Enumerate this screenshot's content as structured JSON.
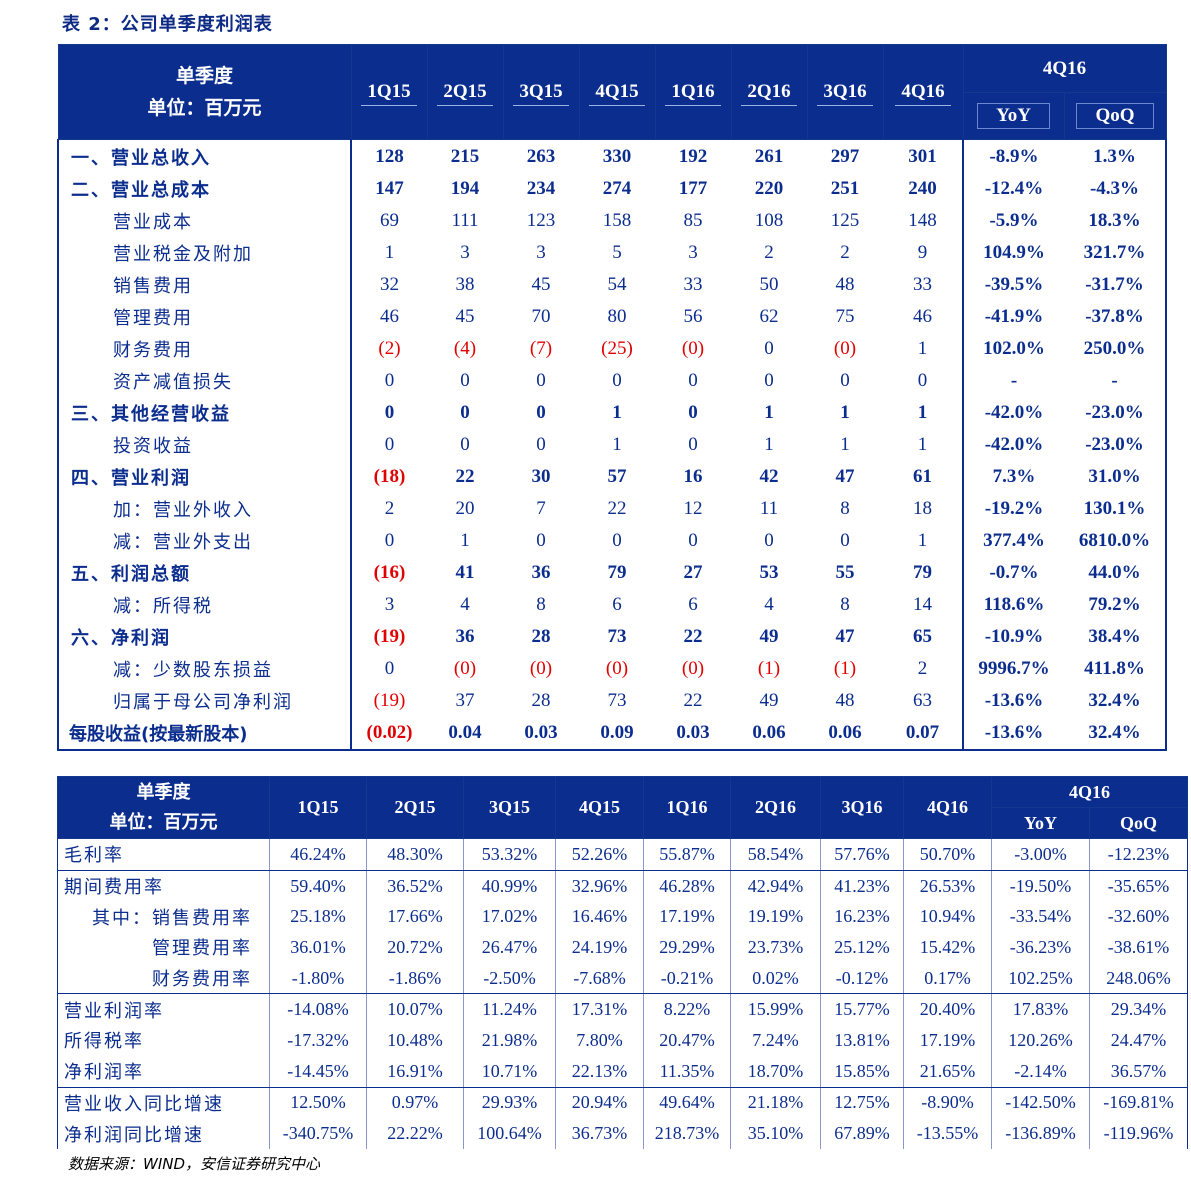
{
  "title": "表 2：公司单季度利润表",
  "source": "数据来源：WIND，安信证券研究中心",
  "income": {
    "corner": [
      "单季度",
      "单位：百万元"
    ],
    "quarters": [
      "1Q15",
      "2Q15",
      "3Q15",
      "4Q15",
      "1Q16",
      "2Q16",
      "3Q16",
      "4Q16"
    ],
    "group": "4Q16",
    "sub": [
      "YoY",
      "QoQ"
    ],
    "rows": [
      {
        "label": "一、营业总收入",
        "vals": [
          "128",
          "215",
          "263",
          "330",
          "192",
          "261",
          "297",
          "301"
        ],
        "yoy": "-8.9%",
        "qoq": "1.3%"
      },
      {
        "label": "二、营业总成本",
        "vals": [
          "147",
          "194",
          "234",
          "274",
          "177",
          "220",
          "251",
          "240"
        ],
        "yoy": "-12.4%",
        "qoq": "-4.3%"
      },
      {
        "label": "营业成本",
        "vals": [
          "69",
          "111",
          "123",
          "158",
          "85",
          "108",
          "125",
          "148"
        ],
        "yoy": "-5.9%",
        "qoq": "18.3%"
      },
      {
        "label": "营业税金及附加",
        "vals": [
          "1",
          "3",
          "3",
          "5",
          "3",
          "2",
          "2",
          "9"
        ],
        "yoy": "104.9%",
        "qoq": "321.7%"
      },
      {
        "label": "销售费用",
        "vals": [
          "32",
          "38",
          "45",
          "54",
          "33",
          "50",
          "48",
          "33"
        ],
        "yoy": "-39.5%",
        "qoq": "-31.7%"
      },
      {
        "label": "管理费用",
        "vals": [
          "46",
          "45",
          "70",
          "80",
          "56",
          "62",
          "75",
          "46"
        ],
        "yoy": "-41.9%",
        "qoq": "-37.8%"
      },
      {
        "label": "财务费用",
        "vals": [
          "(2)",
          "(4)",
          "(7)",
          "(25)",
          "(0)",
          "0",
          "(0)",
          "1"
        ],
        "yoy": "102.0%",
        "qoq": "250.0%"
      },
      {
        "label": "资产减值损失",
        "vals": [
          "0",
          "0",
          "0",
          "0",
          "0",
          "0",
          "0",
          "0"
        ],
        "yoy": "-",
        "qoq": "-"
      },
      {
        "label": "三、其他经营收益",
        "vals": [
          "0",
          "0",
          "0",
          "1",
          "0",
          "1",
          "1",
          "1"
        ],
        "yoy": "-42.0%",
        "qoq": "-23.0%"
      },
      {
        "label": "投资收益",
        "vals": [
          "0",
          "0",
          "0",
          "1",
          "0",
          "1",
          "1",
          "1"
        ],
        "yoy": "-42.0%",
        "qoq": "-23.0%"
      },
      {
        "label": "四、营业利润",
        "vals": [
          "(18)",
          "22",
          "30",
          "57",
          "16",
          "42",
          "47",
          "61"
        ],
        "yoy": "7.3%",
        "qoq": "31.0%"
      },
      {
        "label": "加：营业外收入",
        "vals": [
          "2",
          "20",
          "7",
          "22",
          "12",
          "11",
          "8",
          "18"
        ],
        "yoy": "-19.2%",
        "qoq": "130.1%"
      },
      {
        "label": "减：营业外支出",
        "vals": [
          "0",
          "1",
          "0",
          "0",
          "0",
          "0",
          "0",
          "1"
        ],
        "yoy": "377.4%",
        "qoq": "6810.0%"
      },
      {
        "label": "五、利润总额",
        "vals": [
          "(16)",
          "41",
          "36",
          "79",
          "27",
          "53",
          "55",
          "79"
        ],
        "yoy": "-0.7%",
        "qoq": "44.0%"
      },
      {
        "label": "减：所得税",
        "vals": [
          "3",
          "4",
          "8",
          "6",
          "6",
          "4",
          "8",
          "14"
        ],
        "yoy": "118.6%",
        "qoq": "79.2%"
      },
      {
        "label": "六、净利润",
        "vals": [
          "(19)",
          "36",
          "28",
          "73",
          "22",
          "49",
          "47",
          "65"
        ],
        "yoy": "-10.9%",
        "qoq": "38.4%"
      },
      {
        "label": "减：少数股东损益",
        "vals": [
          "0",
          "(0)",
          "(0)",
          "(0)",
          "(0)",
          "(1)",
          "(1)",
          "2"
        ],
        "yoy": "9996.7%",
        "qoq": "411.8%"
      },
      {
        "label": "归属于母公司净利润",
        "vals": [
          "(19)",
          "37",
          "28",
          "73",
          "22",
          "49",
          "48",
          "63"
        ],
        "yoy": "-13.6%",
        "qoq": "32.4%"
      },
      {
        "label": "每股收益(按最新股本)",
        "vals": [
          "(0.02)",
          "0.04",
          "0.03",
          "0.09",
          "0.03",
          "0.06",
          "0.06",
          "0.07"
        ],
        "yoy": "-13.6%",
        "qoq": "32.4%"
      }
    ]
  },
  "ratios": {
    "corner": [
      "单季度",
      "单位：百万元"
    ],
    "quarters": [
      "1Q15",
      "2Q15",
      "3Q15",
      "4Q15",
      "1Q16",
      "2Q16",
      "3Q16",
      "4Q16"
    ],
    "group": "4Q16",
    "sub": [
      "YoY",
      "QoQ"
    ],
    "rows": [
      {
        "label": "毛利率",
        "vals": [
          "46.24%",
          "48.30%",
          "53.32%",
          "52.26%",
          "55.87%",
          "58.54%",
          "57.76%",
          "50.70%"
        ],
        "yoy": "-3.00%",
        "qoq": "-12.23%"
      },
      {
        "label": "期间费用率",
        "vals": [
          "59.40%",
          "36.52%",
          "40.99%",
          "32.96%",
          "46.28%",
          "42.94%",
          "41.23%",
          "26.53%"
        ],
        "yoy": "-19.50%",
        "qoq": "-35.65%"
      },
      {
        "label": "其中：销售费用率",
        "vals": [
          "25.18%",
          "17.66%",
          "17.02%",
          "16.46%",
          "17.19%",
          "19.19%",
          "16.23%",
          "10.94%"
        ],
        "yoy": "-33.54%",
        "qoq": "-32.60%"
      },
      {
        "label": "管理费用率",
        "vals": [
          "36.01%",
          "20.72%",
          "26.47%",
          "24.19%",
          "29.29%",
          "23.73%",
          "25.12%",
          "15.42%"
        ],
        "yoy": "-36.23%",
        "qoq": "-38.61%"
      },
      {
        "label": "财务费用率",
        "vals": [
          "-1.80%",
          "-1.86%",
          "-2.50%",
          "-7.68%",
          "-0.21%",
          "0.02%",
          "-0.12%",
          "0.17%"
        ],
        "yoy": "102.25%",
        "qoq": "248.06%"
      },
      {
        "label": "营业利润率",
        "vals": [
          "-14.08%",
          "10.07%",
          "11.24%",
          "17.31%",
          "8.22%",
          "15.99%",
          "15.77%",
          "20.40%"
        ],
        "yoy": "17.83%",
        "qoq": "29.34%"
      },
      {
        "label": "所得税率",
        "vals": [
          "-17.32%",
          "10.48%",
          "21.98%",
          "7.80%",
          "20.47%",
          "7.24%",
          "13.81%",
          "17.19%"
        ],
        "yoy": "120.26%",
        "qoq": "24.47%"
      },
      {
        "label": "净利润率",
        "vals": [
          "-14.45%",
          "16.91%",
          "10.71%",
          "22.13%",
          "11.35%",
          "18.70%",
          "15.85%",
          "21.65%"
        ],
        "yoy": "-2.14%",
        "qoq": "36.57%"
      },
      {
        "label": "营业收入同比增速",
        "vals": [
          "12.50%",
          "0.97%",
          "29.93%",
          "20.94%",
          "49.64%",
          "21.18%",
          "12.75%",
          "-8.90%"
        ],
        "yoy": "-142.50%",
        "qoq": "-169.81%"
      },
      {
        "label": "净利润同比增速",
        "vals": [
          "-340.75%",
          "22.22%",
          "100.64%",
          "36.73%",
          "218.73%",
          "35.10%",
          "67.89%",
          "-13.55%"
        ],
        "yoy": "-136.89%",
        "qoq": "-119.96%"
      }
    ]
  }
}
